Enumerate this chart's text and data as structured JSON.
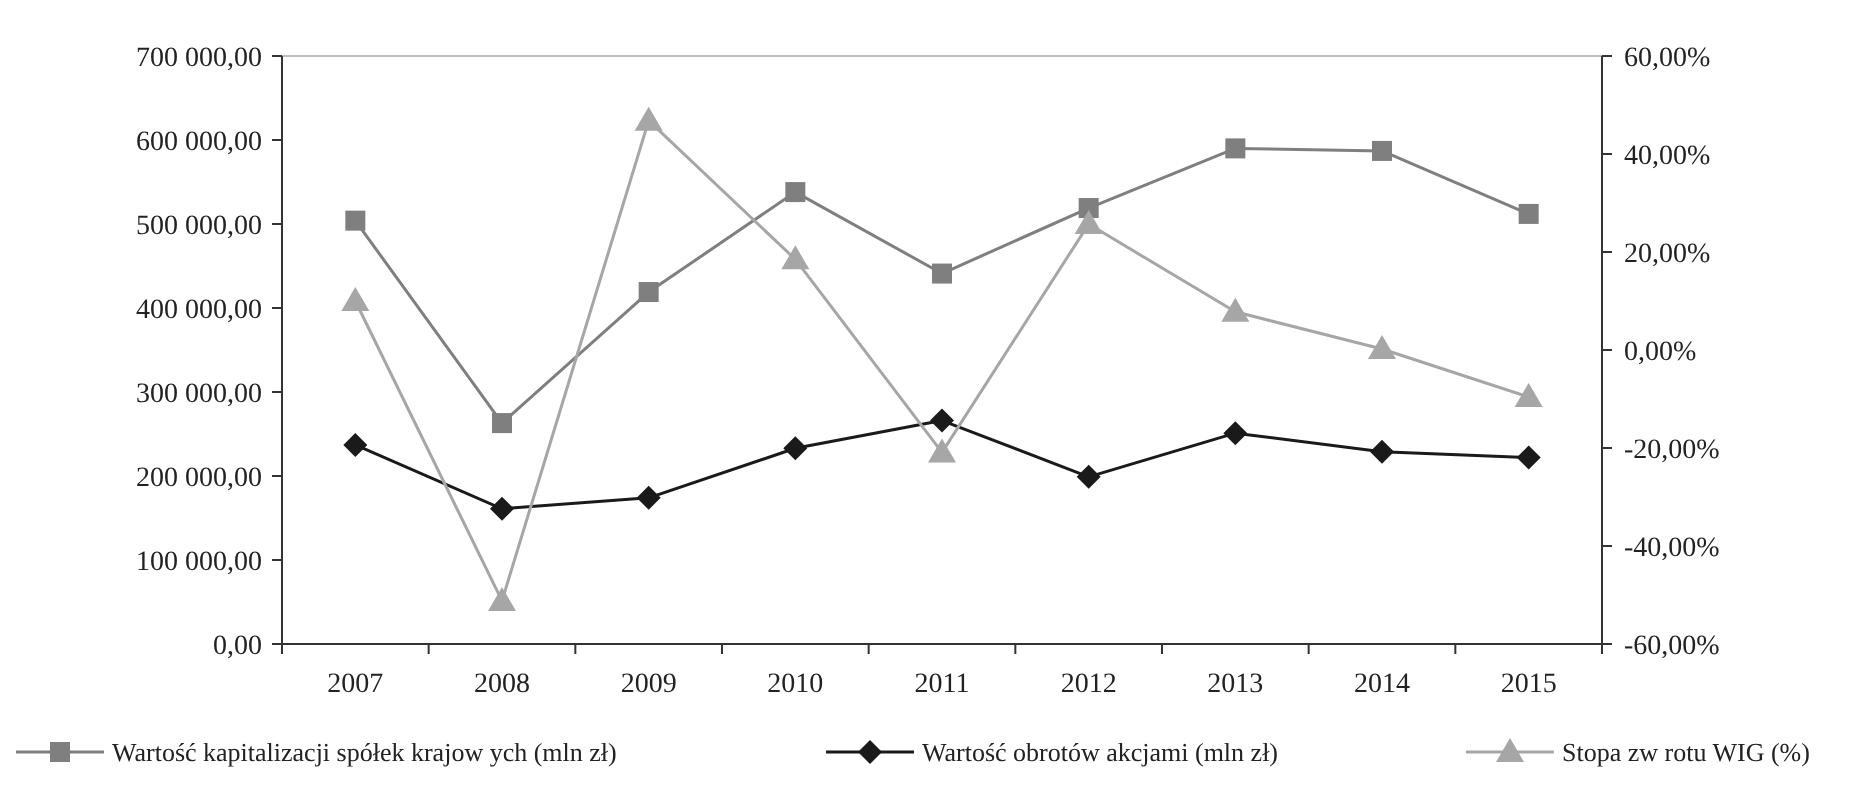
{
  "chart_data": {
    "type": "line",
    "categories": [
      "2007",
      "2008",
      "2009",
      "2010",
      "2011",
      "2012",
      "2013",
      "2014",
      "2015"
    ],
    "series": [
      {
        "name": "Wartość kapitalizacji spółek krajow ych (mln zł)",
        "color": "#7f7f7f",
        "marker": "square",
        "values": [
          504000,
          263000,
          419000,
          538000,
          441000,
          519000,
          590000,
          587000,
          512000
        ]
      },
      {
        "name": "Wartość obrotów  akcjami (mln zł)",
        "color": "#1a1a1a",
        "marker": "diamond",
        "values": [
          237000,
          161000,
          174000,
          233000,
          266000,
          199000,
          251000,
          229000,
          222000
        ]
      },
      {
        "name": "Stopa zw rotu WIG (%)",
        "color": "#a6a6a6",
        "marker": "triangle",
        "axis": "y2",
        "values": [
          10.0,
          -51.2,
          46.8,
          18.5,
          -20.9,
          25.7,
          7.8,
          0.2,
          -9.6
        ]
      }
    ],
    "ylim": [
      0,
      700000
    ],
    "yticks": [
      {
        "value": 0,
        "label": "0,00"
      },
      {
        "value": 100000,
        "label": "100 000,00"
      },
      {
        "value": 200000,
        "label": "200 000,00"
      },
      {
        "value": 300000,
        "label": "300 000,00"
      },
      {
        "value": 400000,
        "label": "400 000,00"
      },
      {
        "value": 500000,
        "label": "500 000,00"
      },
      {
        "value": 600000,
        "label": "600 000,00"
      },
      {
        "value": 700000,
        "label": "700 000,00"
      }
    ],
    "y2lim": [
      -60,
      60
    ],
    "y2ticks": [
      {
        "value": -60,
        "label": "-60,00%"
      },
      {
        "value": -40,
        "label": "-40,00%"
      },
      {
        "value": -20,
        "label": "-20,00%"
      },
      {
        "value": 0,
        "label": "0,00%"
      },
      {
        "value": 20,
        "label": "20,00%"
      },
      {
        "value": 40,
        "label": "40,00%"
      },
      {
        "value": 60,
        "label": "60,00%"
      }
    ],
    "legend": "bottom",
    "grid": false
  }
}
